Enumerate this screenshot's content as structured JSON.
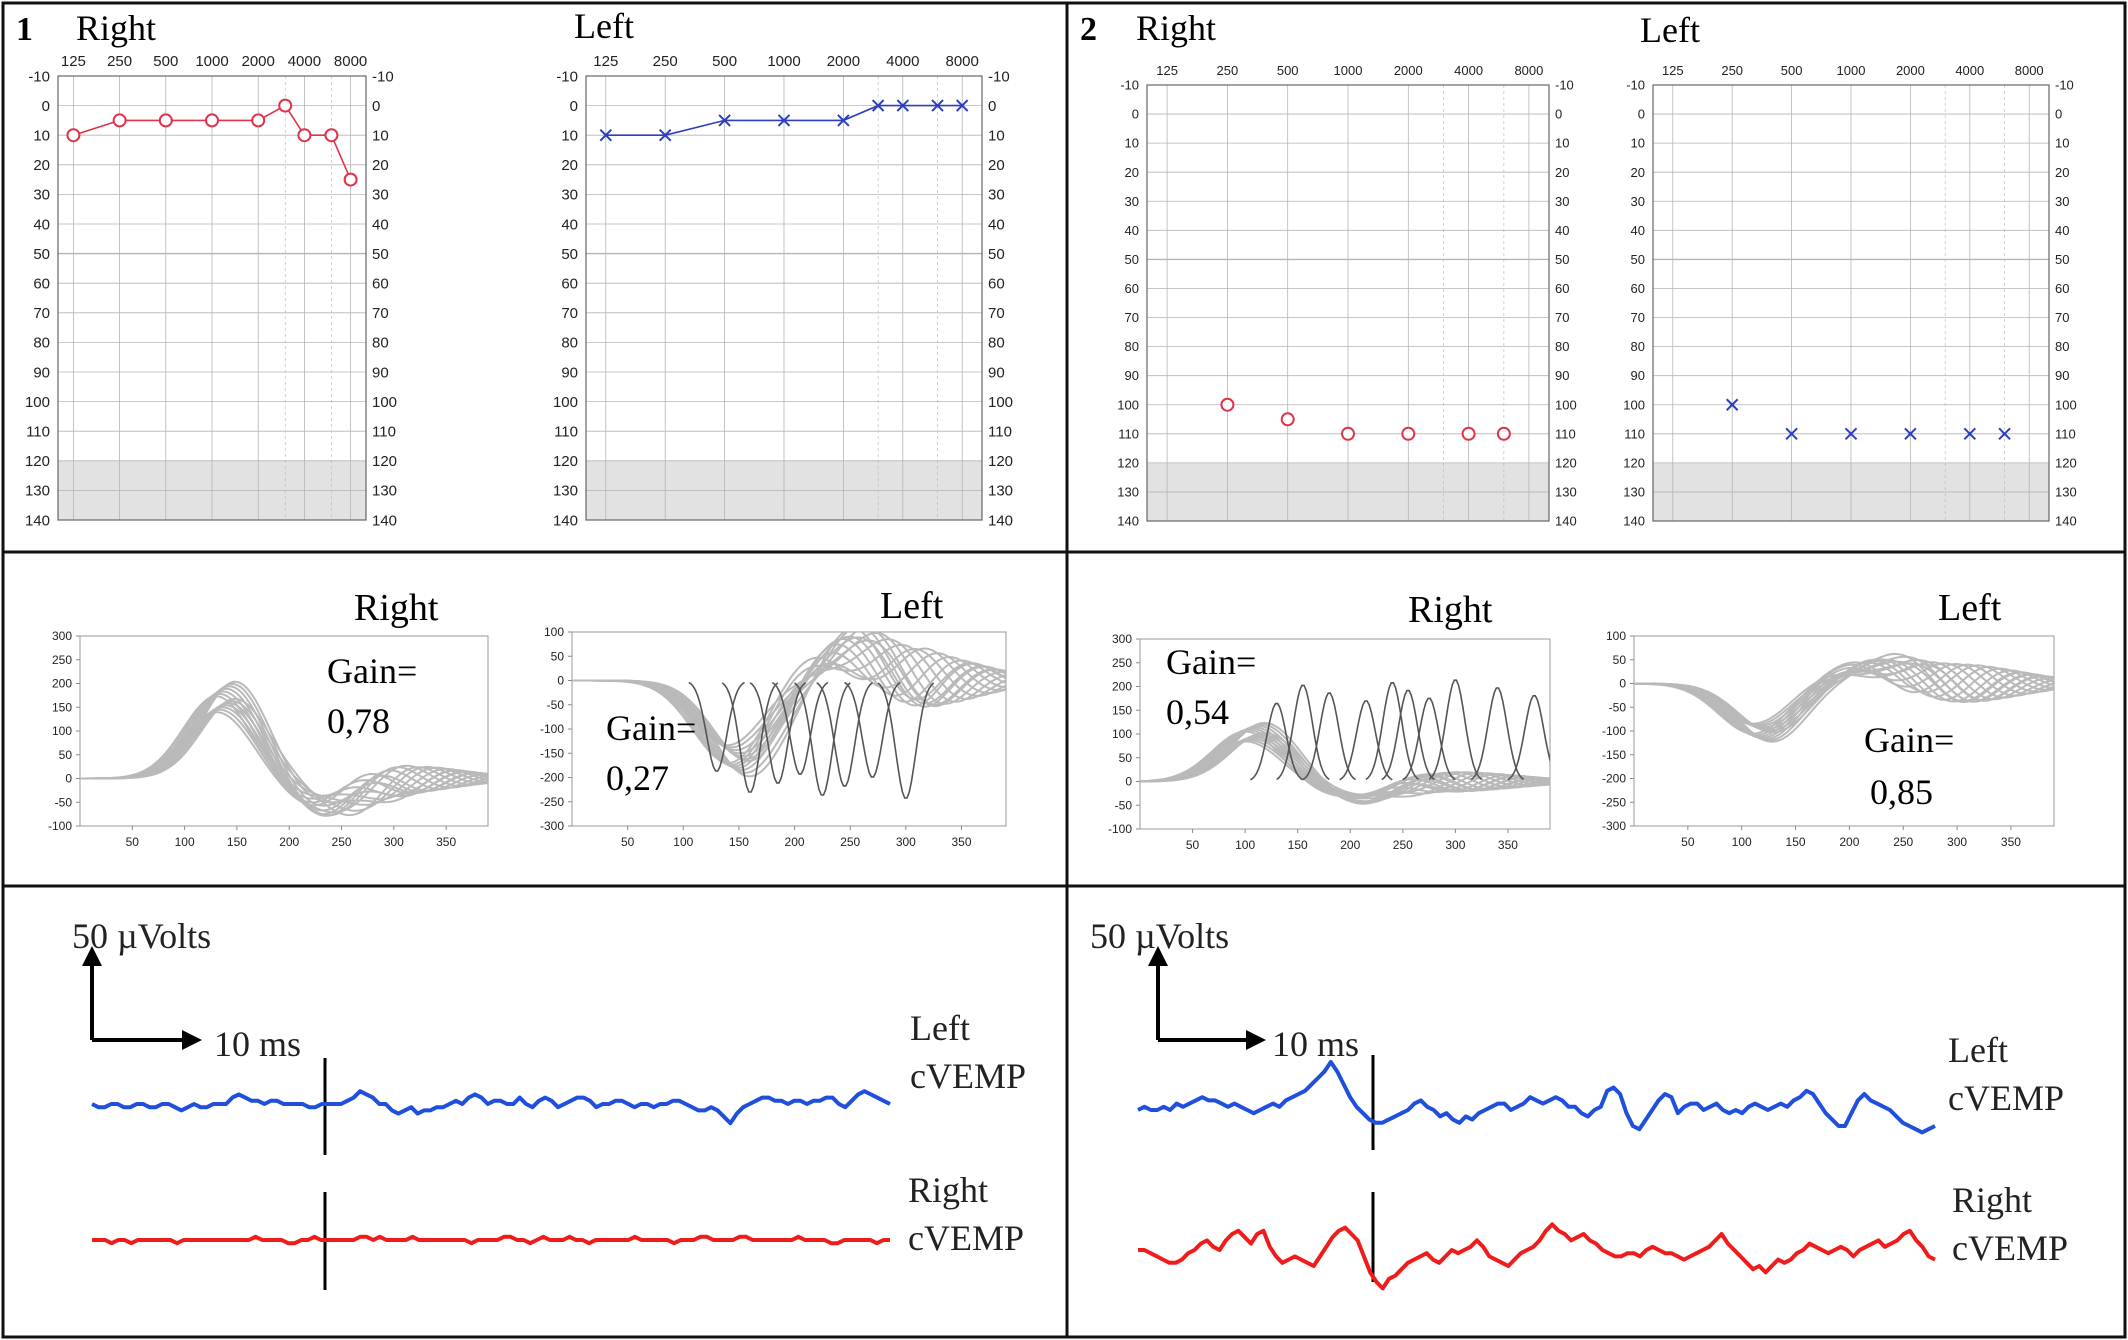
{
  "colors": {
    "right_ear": "#e0334a",
    "left_ear": "#2b3fbf",
    "vhit_trace": "#b9b9b9",
    "saccade_trace": "#555555",
    "cvemp_left": "#1f4fdc",
    "cvemp_right": "#f01c1c",
    "frame": "#111111",
    "grid": "#b5b5b5",
    "shade": "#e2e2e2"
  },
  "chart_data": [
    {
      "type": "scatter",
      "panel_number": "1",
      "ear": "Right",
      "marker": "o",
      "connected": true,
      "x_ticks": [
        "125",
        "250",
        "500",
        "1000",
        "2000",
        "4000",
        "8000"
      ],
      "y_ticks": [
        "-10",
        "0",
        "10",
        "20",
        "30",
        "40",
        "50",
        "60",
        "70",
        "80",
        "90",
        "100",
        "110",
        "120",
        "130",
        "140"
      ],
      "y_inverted": true,
      "shaded_range": [
        120,
        140
      ],
      "frequencies": [
        125,
        250,
        500,
        1000,
        2000,
        3000,
        4000,
        6000,
        8000
      ],
      "thresholds": [
        10,
        5,
        5,
        5,
        5,
        0,
        10,
        10,
        25
      ]
    },
    {
      "type": "scatter",
      "panel_number": "1",
      "ear": "Left",
      "marker": "x",
      "connected": true,
      "x_ticks": [
        "125",
        "250",
        "500",
        "1000",
        "2000",
        "4000",
        "8000"
      ],
      "y_ticks": [
        "-10",
        "0",
        "10",
        "20",
        "30",
        "40",
        "50",
        "60",
        "70",
        "80",
        "90",
        "100",
        "110",
        "120",
        "130",
        "140"
      ],
      "y_inverted": true,
      "shaded_range": [
        120,
        140
      ],
      "frequencies": [
        125,
        250,
        500,
        1000,
        2000,
        3000,
        4000,
        6000,
        8000
      ],
      "thresholds": [
        10,
        10,
        5,
        5,
        5,
        0,
        0,
        0,
        0
      ]
    },
    {
      "type": "scatter",
      "panel_number": "2",
      "ear": "Right",
      "marker": "o",
      "connected": false,
      "x_ticks": [
        "125",
        "250",
        "500",
        "1000",
        "2000",
        "4000",
        "8000"
      ],
      "y_ticks": [
        "-10",
        "0",
        "10",
        "20",
        "30",
        "40",
        "50",
        "60",
        "70",
        "80",
        "90",
        "100",
        "110",
        "120",
        "130",
        "140"
      ],
      "y_inverted": true,
      "shaded_range": [
        120,
        140
      ],
      "frequencies": [
        250,
        500,
        1000,
        2000,
        4000,
        6000
      ],
      "thresholds": [
        100,
        105,
        110,
        110,
        110,
        110
      ]
    },
    {
      "type": "scatter",
      "panel_number": "2",
      "ear": "Left",
      "marker": "x",
      "connected": false,
      "x_ticks": [
        "125",
        "250",
        "500",
        "1000",
        "2000",
        "4000",
        "8000"
      ],
      "y_ticks": [
        "-10",
        "0",
        "10",
        "20",
        "30",
        "40",
        "50",
        "60",
        "70",
        "80",
        "90",
        "100",
        "110",
        "120",
        "130",
        "140"
      ],
      "y_inverted": true,
      "shaded_range": [
        120,
        140
      ],
      "frequencies": [
        250,
        500,
        1000,
        2000,
        4000,
        6000
      ],
      "thresholds": [
        100,
        110,
        110,
        110,
        110,
        110
      ]
    },
    {
      "type": "line",
      "panel_number": "1",
      "side": "Right",
      "gain_label": "Gain=",
      "gain_value": "0,78",
      "x_ticks": [
        "50",
        "100",
        "150",
        "200",
        "250",
        "300",
        "350"
      ],
      "y_ticks": [
        "300",
        "250",
        "200",
        "150",
        "100",
        "50",
        "0",
        "-50",
        "-100"
      ],
      "xlim": [
        0,
        390
      ],
      "ylim": [
        -100,
        300
      ],
      "head_peak": 165,
      "peak_time": 140,
      "saccade_amplitude": 0,
      "saccade_times": [],
      "covert_tail": 30
    },
    {
      "type": "line",
      "panel_number": "1",
      "side": "Left",
      "gain_label": "Gain=",
      "gain_value": "0,27",
      "x_ticks": [
        "50",
        "100",
        "150",
        "200",
        "250",
        "300",
        "350"
      ],
      "y_ticks": [
        "100",
        "50",
        "0",
        "-50",
        "-100",
        "-150",
        "-200",
        "-250",
        "-300"
      ],
      "xlim": [
        0,
        390
      ],
      "ylim": [
        -300,
        100
      ],
      "head_peak": -160,
      "peak_time": 150,
      "saccade_amplitude": -250,
      "saccade_times": [
        130,
        160,
        185,
        205,
        225,
        245,
        270,
        300
      ],
      "covert_tail": 60
    },
    {
      "type": "line",
      "panel_number": "2",
      "side": "Right",
      "gain_label": "Gain=",
      "gain_value": "0,54",
      "x_ticks": [
        "50",
        "100",
        "150",
        "200",
        "250",
        "300",
        "350"
      ],
      "y_ticks": [
        "300",
        "250",
        "200",
        "150",
        "100",
        "50",
        "0",
        "-50",
        "-100"
      ],
      "xlim": [
        0,
        390
      ],
      "ylim": [
        -100,
        300
      ],
      "head_peak": 100,
      "peak_time": 110,
      "saccade_amplitude": 220,
      "saccade_times": [
        130,
        155,
        180,
        215,
        240,
        255,
        275,
        300,
        340,
        375
      ],
      "covert_tail": 20
    },
    {
      "type": "line",
      "panel_number": "2",
      "side": "Left",
      "gain_label": "Gain=",
      "gain_value": "0,85",
      "x_ticks": [
        "50",
        "100",
        "150",
        "200",
        "250",
        "300",
        "350"
      ],
      "y_ticks": [
        "100",
        "50",
        "0",
        "-50",
        "-100",
        "-150",
        "-200",
        "-250",
        "-300"
      ],
      "xlim": [
        0,
        390
      ],
      "ylim": [
        -300,
        100
      ],
      "head_peak": -100,
      "peak_time": 120,
      "saccade_amplitude": 0,
      "saccade_times": [],
      "covert_tail": 40
    }
  ],
  "cvemp": [
    {
      "panel_number": "1",
      "scale_amplitude_label": "50 µVolts",
      "scale_time_label": "10 ms",
      "traces": [
        {
          "side": "Left",
          "label_line1": "Left",
          "label_line2": "cVEMP",
          "series": "cvemp_1_left"
        },
        {
          "side": "Right",
          "label_line1": "Right",
          "label_line2": "cVEMP",
          "series": "cvemp_1_right"
        }
      ]
    },
    {
      "panel_number": "2",
      "scale_amplitude_label": "50 µVolts",
      "scale_time_label": "10 ms",
      "traces": [
        {
          "side": "Left",
          "label_line1": "Left",
          "label_line2": "cVEMP",
          "series": "cvemp_2_left"
        },
        {
          "side": "Right",
          "label_line1": "Right",
          "label_line2": "cVEMP",
          "series": "cvemp_2_right"
        }
      ]
    }
  ],
  "cvemp_series": {
    "cvemp_1_left": [
      0,
      -1,
      -1,
      0,
      0,
      -1,
      -1,
      0,
      0,
      -1,
      -1,
      0,
      0,
      -1,
      -2,
      -1,
      0,
      -1,
      -1,
      0,
      0,
      0,
      2,
      3,
      2,
      1,
      1,
      0,
      1,
      1,
      0,
      0,
      0,
      0,
      -1,
      -1,
      0,
      0,
      0,
      0,
      1,
      2,
      4,
      3,
      2,
      0,
      0,
      -2,
      -3,
      -2,
      -1,
      -3,
      -2,
      -2,
      -1,
      -1,
      0,
      1,
      0,
      2,
      3,
      2,
      0,
      1,
      1,
      0,
      0,
      2,
      0,
      -1,
      1,
      2,
      1,
      -1,
      0,
      1,
      2,
      2,
      1,
      -1,
      0,
      0,
      1,
      1,
      0,
      -1,
      0,
      0,
      -1,
      0,
      0,
      1,
      1,
      0,
      -1,
      -2,
      -2,
      -1,
      -2,
      -4,
      -6,
      -3,
      -1,
      0,
      1,
      2,
      2,
      1,
      1,
      0,
      1,
      1,
      0,
      1,
      1,
      2,
      2,
      0,
      -1,
      1,
      3,
      4,
      3,
      2,
      1,
      0
    ],
    "cvemp_1_right": [
      0,
      0,
      0,
      -1,
      0,
      0,
      -1,
      0,
      0,
      0,
      0,
      0,
      0,
      -1,
      0,
      0,
      0,
      0,
      0,
      0,
      0,
      0,
      0,
      0,
      0,
      1,
      0,
      0,
      0,
      0,
      -1,
      -1,
      0,
      0,
      1,
      0,
      0,
      0,
      0,
      0,
      0,
      1,
      1,
      0,
      1,
      0,
      0,
      0,
      0,
      1,
      0,
      0,
      0,
      0,
      0,
      0,
      0,
      0,
      -1,
      0,
      0,
      0,
      0,
      1,
      1,
      0,
      0,
      -1,
      0,
      1,
      0,
      0,
      0,
      1,
      0,
      0,
      -1,
      0,
      0,
      0,
      0,
      0,
      0,
      1,
      0,
      0,
      0,
      0,
      0,
      -1,
      0,
      0,
      0,
      1,
      1,
      0,
      0,
      0,
      0,
      1,
      1,
      0,
      0,
      0,
      0,
      0,
      0,
      0,
      1,
      0,
      0,
      0,
      0,
      -1,
      -1,
      0,
      0,
      0,
      0,
      0,
      -1,
      0,
      0
    ],
    "cvemp_2_left": [
      0,
      1,
      0,
      0,
      1,
      0,
      2,
      1,
      2,
      3,
      4,
      3,
      3,
      2,
      1,
      2,
      1,
      0,
      -1,
      0,
      1,
      2,
      1,
      3,
      4,
      5,
      6,
      8,
      10,
      12,
      15,
      12,
      8,
      4,
      1,
      -1,
      -3,
      -4,
      -4,
      -3,
      -2,
      -1,
      0,
      2,
      3,
      1,
      0,
      -2,
      -1,
      -3,
      -4,
      -2,
      -3,
      -1,
      0,
      1,
      2,
      2,
      0,
      1,
      2,
      4,
      3,
      2,
      3,
      4,
      3,
      1,
      1,
      -1,
      -2,
      0,
      1,
      6,
      7,
      5,
      -1,
      -5,
      -6,
      -3,
      0,
      3,
      5,
      4,
      -1,
      1,
      2,
      2,
      0,
      1,
      2,
      0,
      -1,
      0,
      -1,
      1,
      2,
      1,
      0,
      1,
      2,
      1,
      3,
      4,
      6,
      5,
      2,
      -1,
      -3,
      -5,
      -5,
      -1,
      3,
      5,
      3,
      2,
      1,
      0,
      -2,
      -4,
      -5,
      -6,
      -7,
      -6,
      -5
    ],
    "cvemp_2_right": [
      0,
      0,
      -1,
      -2,
      -3,
      -4,
      -4,
      -3,
      -1,
      0,
      2,
      3,
      1,
      0,
      3,
      5,
      6,
      4,
      2,
      5,
      6,
      1,
      -2,
      -4,
      -3,
      -2,
      -3,
      -4,
      -5,
      -2,
      1,
      4,
      6,
      7,
      5,
      3,
      -2,
      -7,
      -10,
      -12,
      -9,
      -8,
      -6,
      -4,
      -3,
      -2,
      -1,
      -3,
      -4,
      -2,
      0,
      -1,
      0,
      1,
      3,
      1,
      -2,
      -3,
      -4,
      -5,
      -3,
      -1,
      0,
      1,
      3,
      6,
      8,
      6,
      5,
      3,
      4,
      5,
      3,
      2,
      0,
      -1,
      -2,
      -2,
      -1,
      -1,
      -2,
      0,
      1,
      0,
      -1,
      -1,
      -2,
      -3,
      -2,
      -1,
      0,
      1,
      3,
      5,
      2,
      0,
      -2,
      -4,
      -6,
      -5,
      -7,
      -5,
      -3,
      -4,
      -3,
      -1,
      0,
      2,
      1,
      0,
      -1,
      0,
      1,
      0,
      -2,
      0,
      1,
      2,
      3,
      1,
      2,
      3,
      5,
      6,
      3,
      1,
      -2,
      -3
    ]
  }
}
